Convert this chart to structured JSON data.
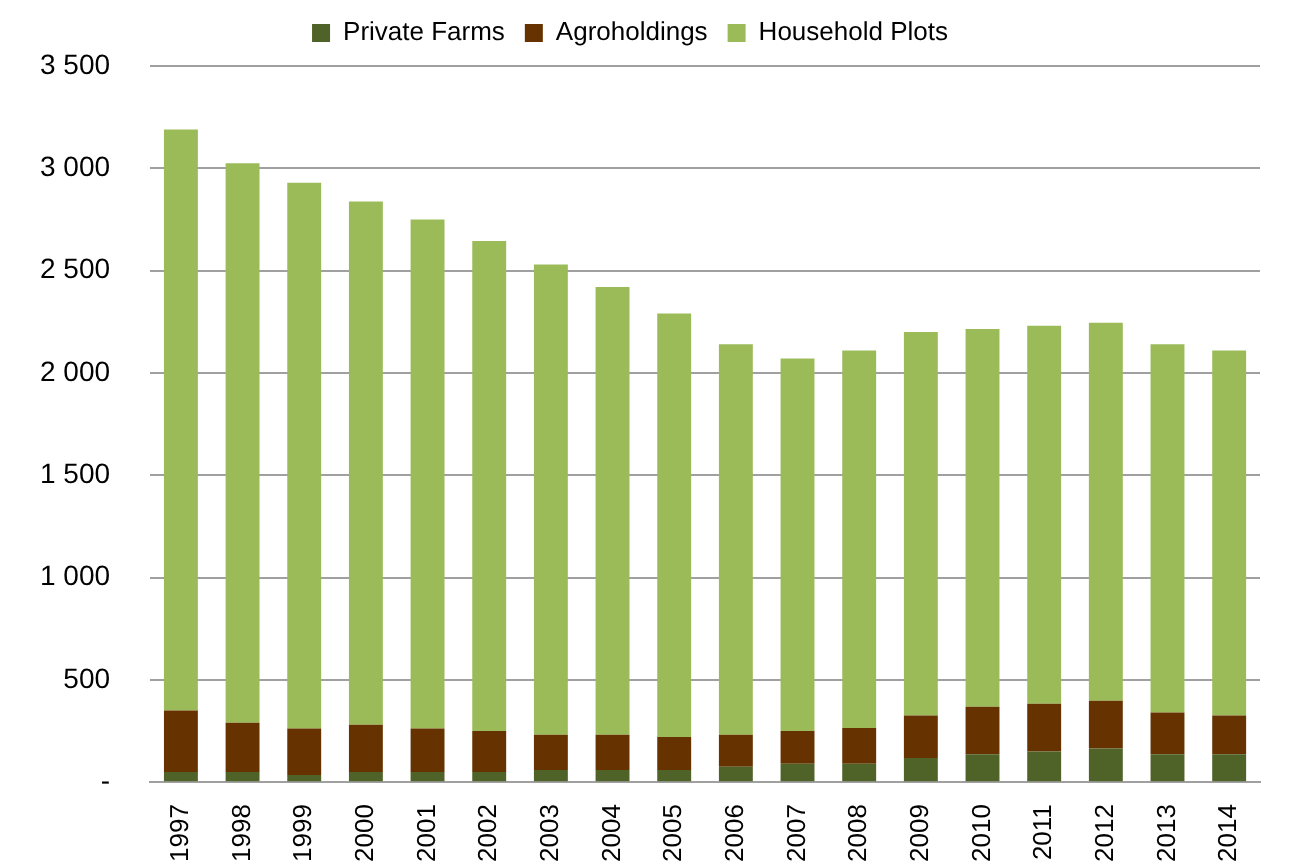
{
  "chart_data": {
    "type": "bar",
    "stacked": true,
    "legend": "top",
    "grid": "y",
    "categories": [
      "1997",
      "1998",
      "1999",
      "2000",
      "2001",
      "2002",
      "2003",
      "2004",
      "2005",
      "2006",
      "2007",
      "2008",
      "2009",
      "2010",
      "2011",
      "2012",
      "2013",
      "2014"
    ],
    "series": [
      {
        "name": "Private Farms",
        "color": "#4f6228",
        "values": [
          50,
          50,
          35,
          50,
          50,
          50,
          60,
          60,
          60,
          75,
          90,
          90,
          118,
          136,
          150,
          165,
          136,
          136
        ]
      },
      {
        "name": "Agroholdings",
        "color": "#663300",
        "values": [
          300,
          240,
          227,
          230,
          212,
          200,
          172,
          172,
          161,
          157,
          160,
          175,
          208,
          233,
          233,
          233,
          204,
          190
        ]
      },
      {
        "name": "Household Plots",
        "color": "#9bbb59",
        "values": [
          2840,
          2735,
          2668,
          2558,
          2488,
          2395,
          2298,
          2188,
          2069,
          1908,
          1820,
          1845,
          1874,
          1846,
          1847,
          1847,
          1800,
          1784
        ]
      }
    ],
    "ylim": [
      0,
      3500
    ],
    "yticks": [
      {
        "value": 0,
        "label": "-"
      },
      {
        "value": 500,
        "label": "500"
      },
      {
        "value": 1000,
        "label": "1 000"
      },
      {
        "value": 1500,
        "label": "1 500"
      },
      {
        "value": 2000,
        "label": "2 000"
      },
      {
        "value": 2500,
        "label": "2 500"
      },
      {
        "value": 3000,
        "label": "3 000"
      },
      {
        "value": 3500,
        "label": "3 500"
      }
    ]
  }
}
